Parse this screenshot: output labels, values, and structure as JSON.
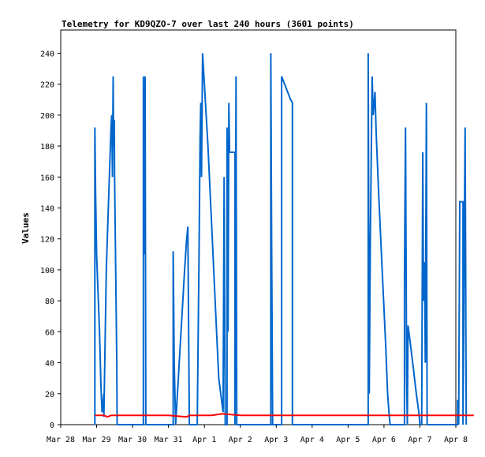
{
  "chart_data": {
    "type": "line",
    "title": "Telemetry for KD9QZO-7 over last 240 hours (3601 points)",
    "xlabel": "",
    "ylabel": "Values",
    "xlim": [
      "Mar 28",
      "Apr 8"
    ],
    "ylim": [
      0,
      255
    ],
    "x_ticks": [
      "Mar 28",
      "Mar 29",
      "Mar 30",
      "Mar 31",
      "Apr 1",
      "Apr 2",
      "Apr 3",
      "Apr 4",
      "Apr 5",
      "Apr 6",
      "Apr 7",
      "Apr 8"
    ],
    "y_ticks": [
      0,
      20,
      40,
      60,
      80,
      100,
      120,
      140,
      160,
      180,
      200,
      220,
      240
    ],
    "grid": false,
    "series": [
      {
        "color": "#0066cc",
        "points": [
          [
            0.95,
            0
          ],
          [
            0.95,
            192
          ],
          [
            0.97,
            150
          ],
          [
            1.0,
            110
          ],
          [
            1.08,
            60
          ],
          [
            1.12,
            25
          ],
          [
            1.15,
            8
          ],
          [
            1.2,
            20
          ],
          [
            1.2,
            5
          ],
          [
            1.27,
            100
          ],
          [
            1.34,
            150
          ],
          [
            1.4,
            192
          ],
          [
            1.42,
            200
          ],
          [
            1.44,
            160
          ],
          [
            1.46,
            225
          ],
          [
            1.47,
            180
          ],
          [
            1.49,
            197
          ],
          [
            1.5,
            160
          ],
          [
            1.56,
            40
          ],
          [
            1.57,
            0
          ],
          [
            2.3,
            0
          ],
          [
            2.3,
            225
          ],
          [
            2.33,
            110
          ],
          [
            2.35,
            225
          ],
          [
            2.37,
            0
          ],
          [
            3.13,
            0
          ],
          [
            3.13,
            112
          ],
          [
            3.16,
            40
          ],
          [
            3.18,
            20
          ],
          [
            3.2,
            0
          ],
          [
            3.45,
            100
          ],
          [
            3.5,
            118
          ],
          [
            3.54,
            128
          ],
          [
            3.58,
            0
          ],
          [
            3.8,
            0
          ],
          [
            3.85,
            110
          ],
          [
            3.88,
            185
          ],
          [
            3.9,
            208
          ],
          [
            3.92,
            160
          ],
          [
            3.95,
            240
          ],
          [
            4.1,
            180
          ],
          [
            4.2,
            130
          ],
          [
            4.3,
            80
          ],
          [
            4.4,
            30
          ],
          [
            4.52,
            8
          ],
          [
            4.55,
            160
          ],
          [
            4.58,
            0
          ],
          [
            4.63,
            0
          ],
          [
            4.63,
            192
          ],
          [
            4.66,
            60
          ],
          [
            4.68,
            208
          ],
          [
            4.7,
            176
          ],
          [
            4.85,
            176
          ],
          [
            4.85,
            0
          ],
          [
            4.88,
            225
          ],
          [
            4.9,
            0
          ],
          [
            5.85,
            0
          ],
          [
            5.85,
            240
          ],
          [
            5.87,
            120
          ],
          [
            5.9,
            0
          ],
          [
            6.15,
            0
          ],
          [
            6.15,
            225
          ],
          [
            6.4,
            210
          ],
          [
            6.45,
            208
          ],
          [
            6.45,
            0
          ],
          [
            8.56,
            0
          ],
          [
            8.56,
            240
          ],
          [
            8.59,
            20
          ],
          [
            8.62,
            120
          ],
          [
            8.67,
            225
          ],
          [
            8.7,
            200
          ],
          [
            8.75,
            215
          ],
          [
            8.78,
            190
          ],
          [
            8.85,
            150
          ],
          [
            8.95,
            100
          ],
          [
            9.05,
            50
          ],
          [
            9.1,
            20
          ],
          [
            9.15,
            5
          ],
          [
            9.17,
            0
          ],
          [
            9.57,
            0
          ],
          [
            9.57,
            96
          ],
          [
            9.6,
            192
          ],
          [
            9.63,
            30
          ],
          [
            9.65,
            0
          ],
          [
            9.67,
            64
          ],
          [
            9.72,
            55
          ],
          [
            9.8,
            40
          ],
          [
            9.9,
            20
          ],
          [
            9.97,
            8
          ],
          [
            10.0,
            0
          ],
          [
            10.05,
            0
          ],
          [
            10.08,
            176
          ],
          [
            10.1,
            80
          ],
          [
            10.13,
            105
          ],
          [
            10.15,
            40
          ],
          [
            10.18,
            208
          ],
          [
            10.2,
            0
          ],
          [
            11.05,
            0
          ],
          [
            11.05,
            16
          ],
          [
            11.08,
            0
          ],
          [
            11.11,
            144
          ],
          [
            11.2,
            144
          ],
          [
            11.2,
            0
          ],
          [
            11.26,
            192
          ],
          [
            11.29,
            0
          ]
        ]
      },
      {
        "color": "#ff0000",
        "points": [
          [
            0.95,
            6
          ],
          [
            1.2,
            6
          ],
          [
            1.3,
            5
          ],
          [
            1.4,
            6
          ],
          [
            2.0,
            6
          ],
          [
            3.0,
            6
          ],
          [
            3.5,
            5
          ],
          [
            3.6,
            6
          ],
          [
            4.2,
            6
          ],
          [
            4.5,
            7
          ],
          [
            5.0,
            6
          ],
          [
            6.0,
            6
          ],
          [
            7.0,
            6
          ],
          [
            8.0,
            6
          ],
          [
            9.0,
            6
          ],
          [
            10.0,
            6
          ],
          [
            11.0,
            6
          ],
          [
            11.5,
            6
          ]
        ]
      }
    ]
  }
}
